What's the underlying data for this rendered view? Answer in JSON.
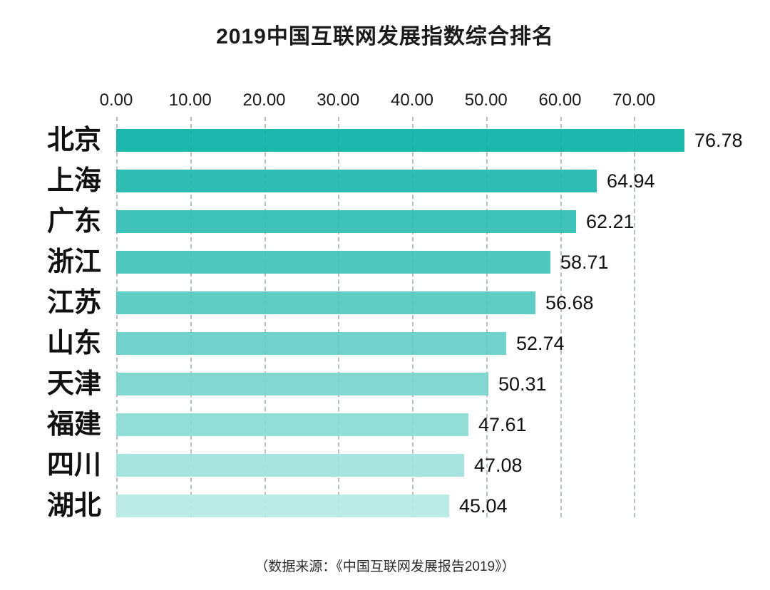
{
  "title": "2019中国互联网发展指数综合排名",
  "source_note": "（数据来源：《中国互联网发展报告2019》）",
  "chart_data": {
    "type": "bar",
    "orientation": "horizontal",
    "title": "2019中国互联网发展指数综合排名",
    "categories": [
      "北京",
      "上海",
      "广东",
      "浙江",
      "江苏",
      "山东",
      "天津",
      "福建",
      "四川",
      "湖北"
    ],
    "values": [
      76.78,
      64.94,
      62.21,
      58.71,
      56.68,
      52.74,
      50.31,
      47.61,
      47.08,
      45.04
    ],
    "value_labels": [
      "76.78",
      "64.94",
      "62.21",
      "58.71",
      "56.68",
      "52.74",
      "50.31",
      "47.61",
      "47.08",
      "45.04"
    ],
    "x_ticks": [
      "0.00",
      "10.00",
      "20.00",
      "30.00",
      "40.00",
      "50.00",
      "60.00",
      "70.00"
    ],
    "xlim": [
      0,
      80
    ],
    "tick_step": 10,
    "grid": "dashed-vertical",
    "legend": "none",
    "bar_colors": [
      "#0bb1a7",
      "#1eb7ad",
      "#30bdb4",
      "#41c3ba",
      "#53c9c0",
      "#65cfc7",
      "#78d5cd",
      "#8bdbd4",
      "#a0e2db",
      "#b6e9e3"
    ],
    "gridline_color": "#b8bfbf",
    "text_color": "#1a1a1a",
    "source": "（数据来源：《中国互联网发展报告2019》）"
  }
}
